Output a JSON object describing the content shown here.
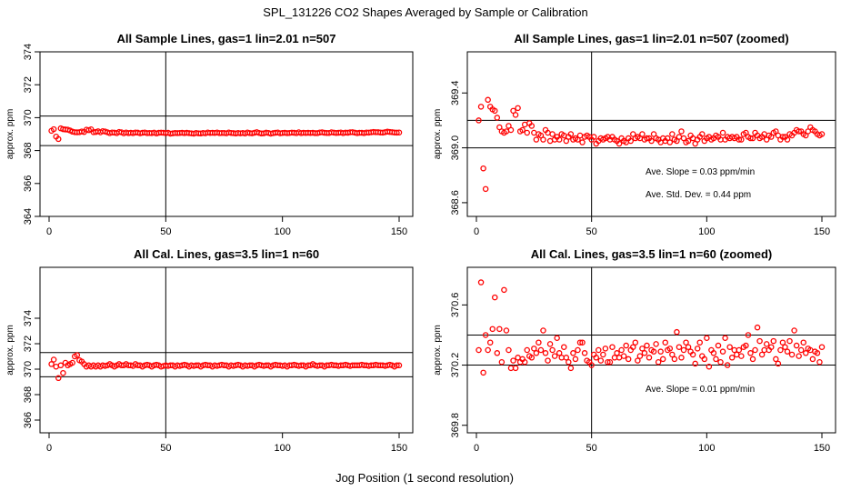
{
  "title": "SPL_131226  CO2 Shapes Averaged by Sample or Calibration",
  "xlabel": "Jog Position (1 second resolution)",
  "colors": {
    "points": "#ff0000",
    "axes": "#000000",
    "background": "#ffffff"
  },
  "chart_data": [
    {
      "type": "scatter",
      "title": "All Sample Lines, gas=1 lin=2.01 n=507",
      "ylabel": "approx. ppm",
      "xlim": [
        0,
        150
      ],
      "ylim": [
        364,
        374
      ],
      "xticks": [
        0,
        50,
        100,
        150
      ],
      "yticks": [
        364,
        366,
        368,
        370,
        372,
        374
      ],
      "hlines": [
        368.3,
        370.1
      ],
      "vline": 50,
      "annotations": [],
      "x": [
        1,
        2,
        3,
        4,
        5,
        6,
        7,
        8,
        9,
        10,
        11,
        12,
        13,
        14,
        15,
        16,
        17,
        18,
        19,
        20,
        21,
        22,
        23,
        24,
        25,
        26,
        27,
        28,
        29,
        30,
        31,
        32,
        33,
        34,
        35,
        36,
        37,
        38,
        39,
        40,
        41,
        42,
        43,
        44,
        45,
        46,
        47,
        48,
        49,
        50,
        51,
        52,
        53,
        54,
        55,
        56,
        57,
        58,
        59,
        60,
        61,
        62,
        63,
        64,
        65,
        66,
        67,
        68,
        69,
        70,
        71,
        72,
        73,
        74,
        75,
        76,
        77,
        78,
        79,
        80,
        81,
        82,
        83,
        84,
        85,
        86,
        87,
        88,
        89,
        90,
        91,
        92,
        93,
        94,
        95,
        96,
        97,
        98,
        99,
        100,
        101,
        102,
        103,
        104,
        105,
        106,
        107,
        108,
        109,
        110,
        111,
        112,
        113,
        114,
        115,
        116,
        117,
        118,
        119,
        120,
        121,
        122,
        123,
        124,
        125,
        126,
        127,
        128,
        129,
        130,
        131,
        132,
        133,
        134,
        135,
        136,
        137,
        138,
        139,
        140,
        141,
        142,
        143,
        144,
        145,
        146,
        147,
        148,
        149,
        150
      ],
      "y": [
        369.2,
        369.3,
        368.85,
        368.7,
        369.35,
        369.3,
        369.28,
        369.27,
        369.22,
        369.15,
        369.12,
        369.11,
        369.12,
        369.16,
        369.13,
        369.27,
        369.24,
        369.29,
        369.12,
        369.13,
        369.17,
        369.11,
        369.18,
        369.16,
        369.11,
        369.06,
        369.1,
        369.09,
        369.06,
        369.13,
        369.11,
        369.05,
        369.1,
        369.06,
        369.08,
        369.06,
        369.1,
        369.09,
        369.05,
        369.08,
        369.1,
        369.06,
        369.07,
        369.06,
        369.09,
        369.04,
        369.08,
        369.09,
        369.08,
        369.06,
        369.08,
        369.03,
        369.05,
        369.07,
        369.06,
        369.07,
        369.08,
        369.06,
        369.08,
        369.06,
        369.05,
        369.03,
        369.07,
        369.05,
        369.04,
        369.07,
        369.05,
        369.1,
        369.07,
        369.08,
        369.07,
        369.1,
        369.06,
        369.07,
        369.07,
        369.05,
        369.1,
        369.07,
        369.06,
        369.04,
        369.07,
        369.05,
        369.07,
        369.04,
        369.1,
        369.06,
        369.05,
        369.08,
        369.12,
        369.07,
        369.04,
        369.05,
        369.09,
        369.07,
        369.03,
        369.06,
        369.08,
        369.1,
        369.05,
        369.07,
        369.08,
        369.06,
        369.07,
        369.09,
        369.08,
        369.06,
        369.11,
        369.06,
        369.08,
        369.07,
        369.08,
        369.07,
        369.08,
        369.06,
        369.06,
        369.1,
        369.11,
        369.08,
        369.07,
        369.07,
        369.11,
        369.09,
        369.07,
        369.08,
        369.1,
        369.06,
        369.09,
        369.08,
        369.11,
        369.12,
        369.09,
        369.06,
        369.08,
        369.08,
        369.06,
        369.1,
        369.09,
        369.11,
        369.13,
        369.12,
        369.12,
        369.1,
        369.09,
        369.12,
        369.15,
        369.13,
        369.12,
        369.1,
        369.09,
        369.1
      ]
    },
    {
      "type": "scatter",
      "title": "All Sample Lines, gas=1 lin=2.01 n=507 (zoomed)",
      "ylabel": "approx. ppm",
      "xlim": [
        0,
        150
      ],
      "ylim": [
        368.5,
        369.7
      ],
      "xticks": [
        0,
        50,
        100,
        150
      ],
      "yticks": [
        368.6,
        369.0,
        369.4
      ],
      "hlines": [
        369.0,
        369.2
      ],
      "vline": 50,
      "annotations": [
        "Ave. Slope =  0.03  ppm/min",
        "Ave. Std. Dev. =  0.44  ppm"
      ],
      "x": [
        1,
        2,
        3,
        4,
        5,
        6,
        7,
        8,
        9,
        10,
        11,
        12,
        13,
        14,
        15,
        16,
        17,
        18,
        19,
        20,
        21,
        22,
        23,
        24,
        25,
        26,
        27,
        28,
        29,
        30,
        31,
        32,
        33,
        34,
        35,
        36,
        37,
        38,
        39,
        40,
        41,
        42,
        43,
        44,
        45,
        46,
        47,
        48,
        49,
        50,
        51,
        52,
        53,
        54,
        55,
        56,
        57,
        58,
        59,
        60,
        61,
        62,
        63,
        64,
        65,
        66,
        67,
        68,
        69,
        70,
        71,
        72,
        73,
        74,
        75,
        76,
        77,
        78,
        79,
        80,
        81,
        82,
        83,
        84,
        85,
        86,
        87,
        88,
        89,
        90,
        91,
        92,
        93,
        94,
        95,
        96,
        97,
        98,
        99,
        100,
        101,
        102,
        103,
        104,
        105,
        106,
        107,
        108,
        109,
        110,
        111,
        112,
        113,
        114,
        115,
        116,
        117,
        118,
        119,
        120,
        121,
        122,
        123,
        124,
        125,
        126,
        127,
        128,
        129,
        130,
        131,
        132,
        133,
        134,
        135,
        136,
        137,
        138,
        139,
        140,
        141,
        142,
        143,
        144,
        145,
        146,
        147,
        148,
        149,
        150
      ],
      "y": [
        369.2,
        369.3,
        368.85,
        368.7,
        369.35,
        369.3,
        369.28,
        369.27,
        369.22,
        369.15,
        369.12,
        369.11,
        369.12,
        369.16,
        369.13,
        369.27,
        369.24,
        369.29,
        369.12,
        369.13,
        369.17,
        369.11,
        369.18,
        369.16,
        369.11,
        369.06,
        369.1,
        369.09,
        369.06,
        369.13,
        369.11,
        369.05,
        369.1,
        369.06,
        369.08,
        369.06,
        369.1,
        369.09,
        369.05,
        369.08,
        369.1,
        369.06,
        369.07,
        369.06,
        369.09,
        369.04,
        369.08,
        369.09,
        369.08,
        369.06,
        369.08,
        369.03,
        369.05,
        369.07,
        369.06,
        369.07,
        369.08,
        369.06,
        369.08,
        369.06,
        369.05,
        369.03,
        369.07,
        369.05,
        369.04,
        369.07,
        369.05,
        369.1,
        369.07,
        369.08,
        369.07,
        369.1,
        369.06,
        369.07,
        369.07,
        369.05,
        369.1,
        369.07,
        369.06,
        369.04,
        369.07,
        369.05,
        369.07,
        369.04,
        369.1,
        369.06,
        369.05,
        369.08,
        369.12,
        369.07,
        369.04,
        369.05,
        369.09,
        369.07,
        369.03,
        369.06,
        369.08,
        369.1,
        369.05,
        369.07,
        369.08,
        369.06,
        369.07,
        369.09,
        369.08,
        369.06,
        369.11,
        369.06,
        369.08,
        369.07,
        369.08,
        369.07,
        369.08,
        369.06,
        369.06,
        369.1,
        369.11,
        369.08,
        369.07,
        369.07,
        369.11,
        369.09,
        369.07,
        369.08,
        369.1,
        369.06,
        369.09,
        369.08,
        369.11,
        369.12,
        369.09,
        369.06,
        369.08,
        369.08,
        369.06,
        369.1,
        369.09,
        369.11,
        369.13,
        369.12,
        369.12,
        369.1,
        369.09,
        369.12,
        369.15,
        369.13,
        369.12,
        369.1,
        369.09,
        369.1
      ]
    },
    {
      "type": "scatter",
      "title": "All Cal. Lines, gas=3.5 lin=1 n=60",
      "ylabel": "approx. ppm",
      "xlim": [
        0,
        150
      ],
      "ylim": [
        365,
        378
      ],
      "xticks": [
        0,
        50,
        100,
        150
      ],
      "yticks": [
        366,
        368,
        370,
        372,
        374
      ],
      "hlines": [
        369.4,
        371.3
      ],
      "vline": 50,
      "annotations": [],
      "x": [
        1,
        2,
        3,
        4,
        5,
        6,
        7,
        8,
        9,
        10,
        11,
        12,
        13,
        14,
        15,
        16,
        17,
        18,
        19,
        20,
        21,
        22,
        23,
        24,
        25,
        26,
        27,
        28,
        29,
        30,
        31,
        32,
        33,
        34,
        35,
        36,
        37,
        38,
        39,
        40,
        41,
        42,
        43,
        44,
        45,
        46,
        47,
        48,
        49,
        50,
        51,
        52,
        53,
        54,
        55,
        56,
        57,
        58,
        59,
        60,
        61,
        62,
        63,
        64,
        65,
        66,
        67,
        68,
        69,
        70,
        71,
        72,
        73,
        74,
        75,
        76,
        77,
        78,
        79,
        80,
        81,
        82,
        83,
        84,
        85,
        86,
        87,
        88,
        89,
        90,
        91,
        92,
        93,
        94,
        95,
        96,
        97,
        98,
        99,
        100,
        101,
        102,
        103,
        104,
        105,
        106,
        107,
        108,
        109,
        110,
        111,
        112,
        113,
        114,
        115,
        116,
        117,
        118,
        119,
        120,
        121,
        122,
        123,
        124,
        125,
        126,
        127,
        128,
        129,
        130,
        131,
        132,
        133,
        134,
        135,
        136,
        137,
        138,
        139,
        140,
        141,
        142,
        143,
        144,
        145,
        146,
        147,
        148,
        149,
        150
      ],
      "y": [
        370.4,
        370.75,
        370.2,
        369.3,
        370.3,
        369.7,
        370.5,
        370.3,
        370.4,
        370.5,
        371.0,
        371.1,
        370.7,
        370.6,
        370.4,
        370.2,
        370.3,
        370.2,
        370.3,
        370.2,
        370.3,
        370.2,
        370.3,
        370.25,
        370.3,
        370.4,
        370.3,
        370.2,
        370.3,
        370.4,
        370.3,
        370.3,
        370.4,
        370.3,
        370.3,
        370.25,
        370.4,
        370.3,
        370.3,
        370.2,
        370.3,
        370.35,
        370.3,
        370.2,
        370.3,
        370.35,
        370.3,
        370.2,
        370.25,
        370.3,
        370.25,
        370.3,
        370.3,
        370.2,
        370.3,
        370.25,
        370.3,
        370.35,
        370.3,
        370.2,
        370.3,
        370.25,
        370.3,
        370.3,
        370.2,
        370.3,
        370.35,
        370.3,
        370.3,
        370.2,
        370.3,
        370.25,
        370.3,
        370.35,
        370.3,
        370.3,
        370.2,
        370.3,
        370.25,
        370.3,
        370.35,
        370.3,
        370.2,
        370.3,
        370.25,
        370.3,
        370.3,
        370.2,
        370.3,
        370.35,
        370.3,
        370.25,
        370.3,
        370.3,
        370.2,
        370.3,
        370.35,
        370.3,
        370.3,
        370.25,
        370.3,
        370.2,
        370.3,
        370.3,
        370.35,
        370.3,
        370.25,
        370.3,
        370.3,
        370.2,
        370.3,
        370.3,
        370.4,
        370.3,
        370.25,
        370.3,
        370.3,
        370.2,
        370.3,
        370.3,
        370.35,
        370.3,
        370.3,
        370.25,
        370.3,
        370.3,
        370.35,
        370.3,
        370.25,
        370.3,
        370.3,
        370.3,
        370.3,
        370.35,
        370.3,
        370.3,
        370.25,
        370.3,
        370.3,
        370.35,
        370.3,
        370.3,
        370.3,
        370.25,
        370.3,
        370.35,
        370.3,
        370.2,
        370.3,
        370.3
      ]
    },
    {
      "type": "scatter",
      "title": "All Cal. Lines, gas=3.5 lin=1 n=60 (zoomed)",
      "ylabel": "approx. ppm",
      "xlim": [
        0,
        150
      ],
      "ylim": [
        369.75,
        370.85
      ],
      "xticks": [
        0,
        50,
        100,
        150
      ],
      "yticks": [
        369.8,
        370.2,
        370.6
      ],
      "hlines": [
        370.2,
        370.4
      ],
      "vline": 50,
      "annotations": [
        "Ave. Slope =  0.01  ppm/min"
      ],
      "x": [
        1,
        2,
        3,
        4,
        5,
        6,
        7,
        8,
        9,
        10,
        11,
        12,
        13,
        14,
        15,
        16,
        17,
        18,
        19,
        20,
        21,
        22,
        23,
        24,
        25,
        26,
        27,
        28,
        29,
        30,
        31,
        32,
        33,
        34,
        35,
        36,
        37,
        38,
        39,
        40,
        41,
        42,
        43,
        44,
        45,
        46,
        47,
        48,
        49,
        50,
        51,
        52,
        53,
        54,
        55,
        56,
        57,
        58,
        59,
        60,
        61,
        62,
        63,
        64,
        65,
        66,
        67,
        68,
        69,
        70,
        71,
        72,
        73,
        74,
        75,
        76,
        77,
        78,
        79,
        80,
        81,
        82,
        83,
        84,
        85,
        86,
        87,
        88,
        89,
        90,
        91,
        92,
        93,
        94,
        95,
        96,
        97,
        98,
        99,
        100,
        101,
        102,
        103,
        104,
        105,
        106,
        107,
        108,
        109,
        110,
        111,
        112,
        113,
        114,
        115,
        116,
        117,
        118,
        119,
        120,
        121,
        122,
        123,
        124,
        125,
        126,
        127,
        128,
        129,
        130,
        131,
        132,
        133,
        134,
        135,
        136,
        137,
        138,
        139,
        140,
        141,
        142,
        143,
        144,
        145,
        146,
        147,
        148,
        149,
        150
      ],
      "y": [
        370.3,
        370.75,
        370.15,
        370.4,
        370.3,
        370.35,
        370.44,
        370.65,
        370.28,
        370.44,
        370.22,
        370.7,
        370.43,
        370.3,
        370.18,
        370.23,
        370.18,
        370.25,
        370.22,
        370.24,
        370.22,
        370.3,
        370.26,
        370.25,
        370.31,
        370.28,
        370.35,
        370.3,
        370.43,
        370.28,
        370.23,
        370.34,
        370.3,
        370.26,
        370.38,
        370.28,
        370.25,
        370.32,
        370.25,
        370.22,
        370.18,
        370.28,
        370.24,
        370.3,
        370.35,
        370.35,
        370.28,
        370.23,
        370.22,
        370.2,
        370.27,
        370.25,
        370.3,
        370.23,
        370.27,
        370.31,
        370.22,
        370.22,
        370.32,
        370.25,
        370.28,
        370.25,
        370.3,
        370.26,
        370.33,
        370.24,
        370.3,
        370.32,
        370.35,
        370.23,
        370.26,
        370.31,
        370.28,
        370.33,
        370.25,
        370.3,
        370.29,
        370.34,
        370.22,
        370.29,
        370.24,
        370.35,
        370.3,
        370.31,
        370.27,
        370.24,
        370.42,
        370.32,
        370.25,
        370.3,
        370.35,
        370.32,
        370.29,
        370.27,
        370.21,
        370.31,
        370.35,
        370.26,
        370.24,
        370.38,
        370.19,
        370.3,
        370.28,
        370.24,
        370.33,
        370.22,
        370.29,
        370.38,
        370.2,
        370.32,
        370.25,
        370.3,
        370.27,
        370.3,
        370.26,
        370.32,
        370.33,
        370.4,
        370.28,
        370.24,
        370.3,
        370.45,
        370.36,
        370.27,
        370.3,
        370.34,
        370.3,
        370.32,
        370.36,
        370.24,
        370.21,
        370.3,
        370.35,
        370.32,
        370.29,
        370.36,
        370.27,
        370.43,
        370.33,
        370.26,
        370.3,
        370.35,
        370.28,
        370.31,
        370.3,
        370.24,
        370.29,
        370.28,
        370.22,
        370.32
      ]
    }
  ]
}
